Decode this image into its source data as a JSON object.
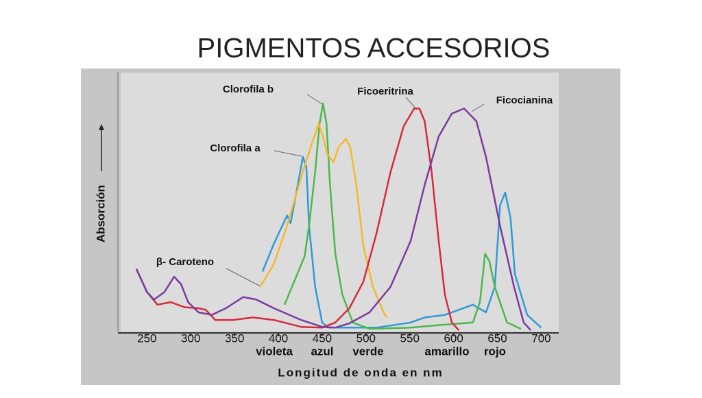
{
  "chart_data": {
    "type": "line",
    "title": "PIGMENTOS ACCESORIOS",
    "x_label": "Longitud de onda en nm",
    "y_label": "Absorción",
    "annotations": [
      "violeta",
      "azul",
      "verde",
      "amarillo",
      "rojo"
    ],
    "xlim": [
      220,
      720
    ],
    "xticks": [
      250,
      300,
      350,
      400,
      450,
      500,
      550,
      600,
      650,
      700
    ],
    "ylim": [
      0,
      100
    ],
    "series": [
      {
        "name": "Clorofila a",
        "color": "#2e9bd6",
        "x": [
          382,
          395,
          410,
          414,
          420,
          428,
          432,
          435,
          442,
          450,
          457,
          512,
          551,
          567,
          590,
          622,
          637,
          647,
          653,
          659,
          665,
          670,
          684,
          700
        ],
        "values": [
          23,
          34,
          45,
          42,
          53,
          68,
          64,
          41,
          17,
          3,
          1,
          1,
          3,
          5,
          6,
          10,
          7,
          17,
          49,
          54,
          44,
          22,
          6,
          1
        ]
      },
      {
        "name": "Clorofila b",
        "color": "#4cb84a",
        "x": [
          407,
          418,
          430,
          435,
          442,
          447,
          451,
          455,
          459,
          465,
          473,
          485,
          504,
          551,
          583,
          622,
          630,
          636,
          641,
          647,
          661,
          677
        ],
        "values": [
          10,
          19,
          29,
          41,
          62,
          81,
          89,
          81,
          57,
          30,
          14,
          3,
          0.5,
          1,
          2,
          3,
          11,
          30,
          27,
          17,
          3,
          0.5
        ]
      },
      {
        "name": "β- Caroteno",
        "color": "#f5b82a",
        "x": [
          379,
          395,
          410,
          426,
          438,
          446,
          451,
          456,
          463,
          469,
          477,
          482,
          489,
          497,
          508,
          520,
          524
        ],
        "values": [
          17,
          26,
          41,
          60,
          73,
          81,
          76,
          69,
          66,
          72,
          75,
          72,
          57,
          33,
          17,
          7,
          5
        ]
      },
      {
        "name": "Ficoeritrina",
        "color": "#d42a3c",
        "x": [
          238,
          250,
          262,
          277,
          293,
          309,
          317,
          328,
          348,
          371,
          395,
          426,
          450,
          465,
          481,
          497,
          512,
          528,
          543,
          555,
          561,
          567,
          575,
          583,
          590,
          598,
          606
        ],
        "values": [
          24,
          15,
          10,
          11,
          9,
          8.6,
          8,
          4,
          4,
          5,
          4,
          1.3,
          1,
          3,
          8.6,
          19,
          38,
          62,
          80,
          87,
          87,
          82,
          62,
          35,
          14,
          3,
          0
        ]
      },
      {
        "name": "Ficocianina",
        "color": "#7b3a9e",
        "x": [
          238,
          250,
          258,
          270,
          281,
          289,
          297,
          309,
          324,
          340,
          360,
          375,
          395,
          426,
          450,
          465,
          481,
          504,
          528,
          551,
          567,
          583,
          598,
          612,
          626,
          637,
          653,
          669,
          680,
          688
        ],
        "values": [
          24,
          15,
          12,
          15,
          21,
          18,
          11,
          7,
          6,
          8.6,
          13,
          12,
          8.6,
          4,
          1.3,
          1,
          2.7,
          7,
          17,
          35,
          57,
          76,
          85,
          87,
          82,
          68,
          41,
          17,
          3,
          0
        ]
      }
    ]
  }
}
